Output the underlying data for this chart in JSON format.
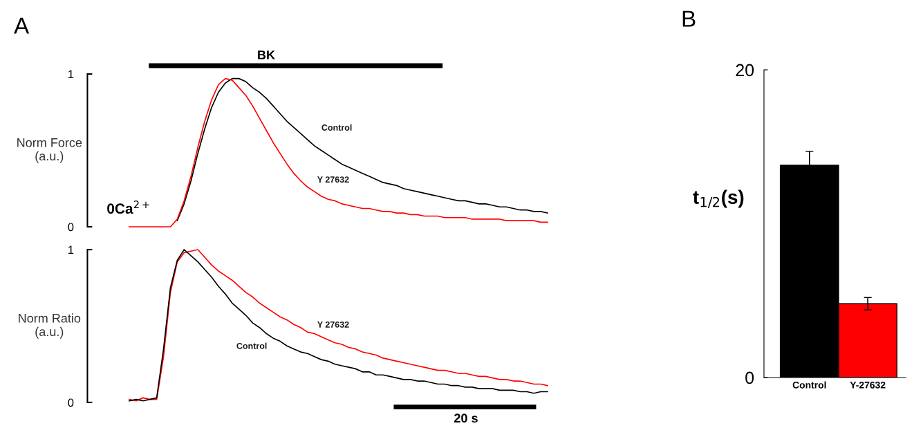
{
  "chart_data": [
    {
      "type": "line",
      "title": "A",
      "ylabel": "Norm Force\n(a.u.)",
      "ylim": [
        0,
        1
      ],
      "yticks": [
        0,
        1
      ],
      "annotations": [
        "BK",
        "0Ca$^{2+}$"
      ],
      "categories": [
        null,
        null,
        null,
        null,
        null,
        null,
        null,
        null,
        null,
        null,
        null,
        null,
        null,
        null,
        null,
        null,
        null,
        null,
        null,
        null,
        null,
        null,
        null,
        null,
        null,
        null,
        null,
        null,
        null,
        null,
        null,
        null,
        null,
        null,
        null,
        null,
        null,
        null,
        null,
        null,
        null,
        null,
        null,
        null,
        null,
        null,
        null,
        null,
        null,
        null,
        null,
        null,
        null,
        null,
        null,
        null,
        null,
        null,
        null,
        null,
        null,
        null
      ],
      "tick_labels": "y",
      "series": [
        {
          "name": "Control",
          "color": "#000000",
          "values": [
            null,
            null,
            null,
            null,
            null,
            null,
            null,
            0.04,
            0.15,
            0.3,
            0.48,
            0.64,
            0.78,
            0.88,
            0.94,
            0.97,
            0.97,
            0.95,
            0.91,
            0.88,
            0.84,
            0.79,
            0.74,
            0.69,
            0.65,
            0.61,
            0.57,
            0.53,
            0.5,
            0.47,
            0.44,
            0.41,
            0.39,
            0.37,
            0.35,
            0.33,
            0.31,
            0.29,
            0.28,
            0.27,
            0.25,
            0.24,
            0.23,
            0.22,
            0.21,
            0.2,
            0.19,
            0.18,
            0.17,
            0.17,
            0.16,
            0.15,
            0.15,
            0.14,
            0.13,
            0.13,
            0.12,
            0.11,
            0.11,
            0.1,
            0.1,
            0.09
          ]
        },
        {
          "name": "Y 27632",
          "color": "#ff0000",
          "values": [
            0,
            0,
            0,
            0,
            0,
            0,
            0,
            0.05,
            0.17,
            0.33,
            0.52,
            0.69,
            0.83,
            0.93,
            0.97,
            0.96,
            0.91,
            0.86,
            0.79,
            0.71,
            0.63,
            0.55,
            0.48,
            0.41,
            0.35,
            0.3,
            0.26,
            0.23,
            0.2,
            0.18,
            0.17,
            0.15,
            0.14,
            0.13,
            0.12,
            0.12,
            0.11,
            0.1,
            0.1,
            0.09,
            0.09,
            0.08,
            0.08,
            0.07,
            0.07,
            0.07,
            0.06,
            0.06,
            0.06,
            0.06,
            0.05,
            0.05,
            0.05,
            0.05,
            0.05,
            0.04,
            0.04,
            0.04,
            0.04,
            0.04,
            0.03,
            0.03
          ]
        }
      ]
    },
    {
      "type": "line",
      "ylabel": "Norm Ratio\n(a.u.)",
      "ylim": [
        0,
        1
      ],
      "yticks": [
        0,
        1
      ],
      "annotations": [
        "20 s"
      ],
      "categories": [
        null,
        null,
        null,
        null,
        null,
        null,
        null,
        null,
        null,
        null,
        null,
        null,
        null,
        null,
        null,
        null,
        null,
        null,
        null,
        null,
        null,
        null,
        null,
        null,
        null,
        null,
        null,
        null,
        null,
        null,
        null,
        null,
        null,
        null,
        null,
        null,
        null,
        null,
        null,
        null,
        null,
        null,
        null,
        null,
        null,
        null,
        null,
        null,
        null,
        null,
        null,
        null,
        null,
        null,
        null,
        null,
        null,
        null,
        null,
        null,
        null,
        null
      ],
      "tick_labels": "y",
      "series": [
        {
          "name": "Y 27632",
          "color": "#ff0000",
          "values": [
            0.02,
            0.01,
            0.03,
            0.02,
            0.02,
            0.3,
            0.72,
            0.92,
            0.98,
            0.99,
            1.0,
            0.95,
            0.9,
            0.86,
            0.83,
            0.8,
            0.76,
            0.72,
            0.69,
            0.65,
            0.62,
            0.59,
            0.56,
            0.54,
            0.51,
            0.49,
            0.46,
            0.45,
            0.43,
            0.41,
            0.39,
            0.38,
            0.36,
            0.35,
            0.33,
            0.32,
            0.31,
            0.29,
            0.28,
            0.27,
            0.26,
            0.25,
            0.24,
            0.23,
            0.22,
            0.21,
            0.21,
            0.2,
            0.19,
            0.19,
            0.18,
            0.17,
            0.17,
            0.16,
            0.15,
            0.15,
            0.14,
            0.14,
            0.13,
            0.12,
            0.12,
            0.11
          ]
        },
        {
          "name": "Control",
          "color": "#000000",
          "values": [
            0.01,
            0.02,
            0.01,
            0.02,
            0.03,
            0.35,
            0.75,
            0.93,
            1.0,
            0.96,
            0.92,
            0.87,
            0.82,
            0.76,
            0.71,
            0.65,
            0.61,
            0.57,
            0.52,
            0.49,
            0.45,
            0.42,
            0.4,
            0.37,
            0.35,
            0.33,
            0.32,
            0.3,
            0.28,
            0.27,
            0.25,
            0.24,
            0.23,
            0.22,
            0.2,
            0.2,
            0.18,
            0.18,
            0.17,
            0.16,
            0.15,
            0.15,
            0.14,
            0.14,
            0.13,
            0.12,
            0.12,
            0.11,
            0.11,
            0.1,
            0.1,
            0.09,
            0.09,
            0.09,
            0.08,
            0.08,
            0.08,
            0.07,
            0.07,
            0.06,
            0.07,
            0.07
          ]
        }
      ]
    },
    {
      "type": "bar",
      "title": "B",
      "ylabel": "t$_{1/2}$(s)",
      "categories": [
        "Control",
        "Y-27632"
      ],
      "values": [
        13.8,
        4.8
      ],
      "errors": [
        0.9,
        0.4
      ],
      "colors": [
        "#000000",
        "#ff0000"
      ],
      "ylim": [
        0,
        20
      ],
      "yticks": [
        0,
        20
      ]
    }
  ]
}
